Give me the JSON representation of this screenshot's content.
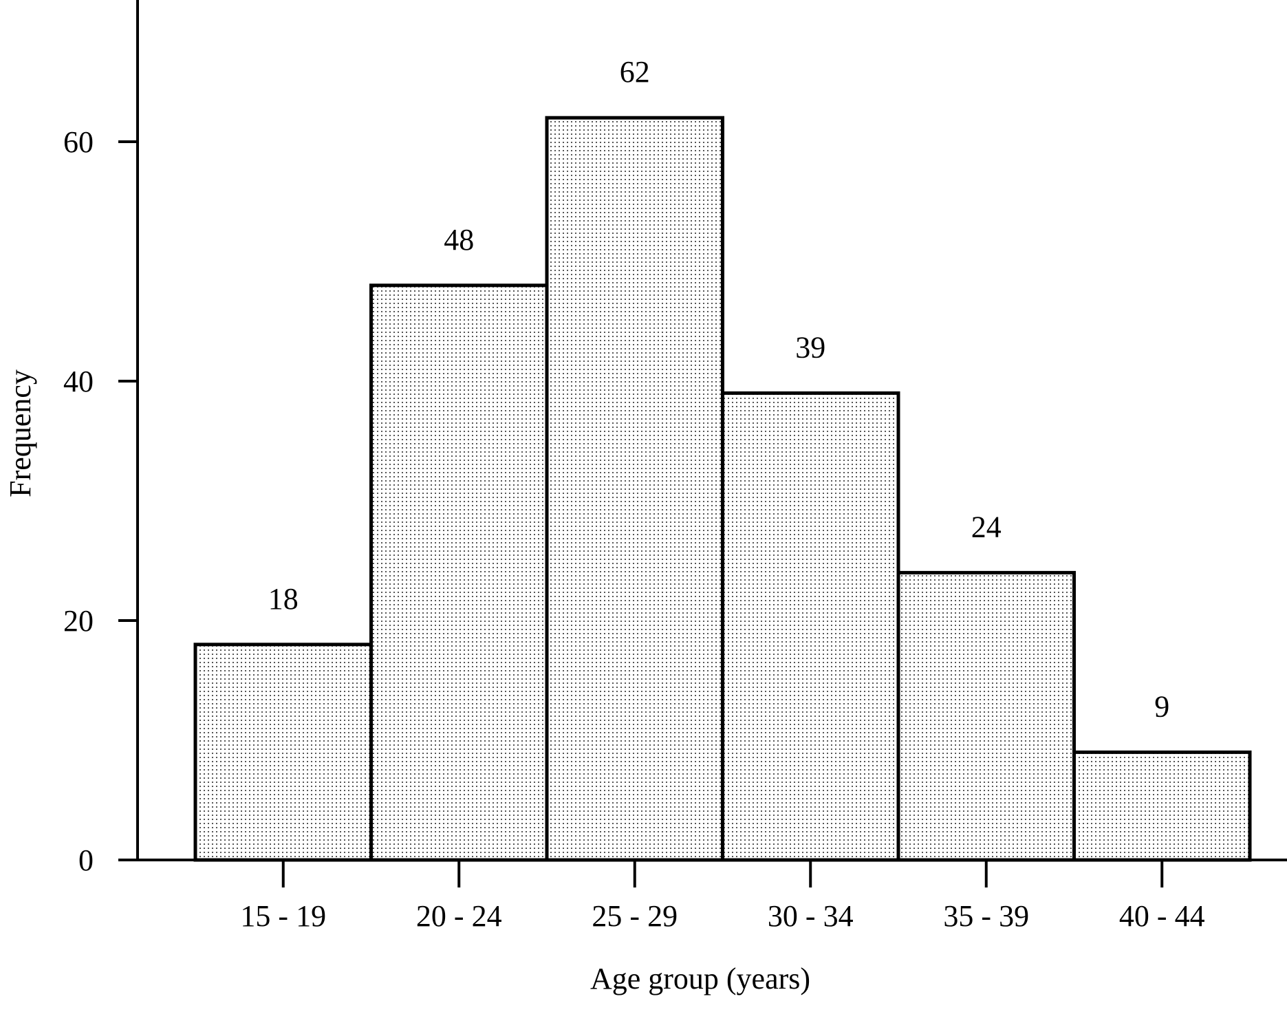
{
  "chart_data": {
    "type": "bar",
    "title": "",
    "xlabel": "Age group (years)",
    "ylabel": "Frequency",
    "categories": [
      "15 - 19",
      "20 - 24",
      "25 - 29",
      "30 - 34",
      "35 - 39",
      "40 - 44"
    ],
    "values": [
      18,
      48,
      62,
      39,
      24,
      9
    ],
    "data_labels": [
      "18",
      "48",
      "62",
      "39",
      "24",
      "9"
    ],
    "ylim": [
      0,
      72
    ],
    "yticks": [
      0,
      20,
      40,
      60
    ],
    "ytick_labels": [
      "0",
      "20",
      "40",
      "60"
    ],
    "grid": false,
    "legend": "none",
    "bar_fill": "#ffffff",
    "bar_stipple": "#555555",
    "bar_outline": "#000000",
    "axis_color": "#000000"
  }
}
